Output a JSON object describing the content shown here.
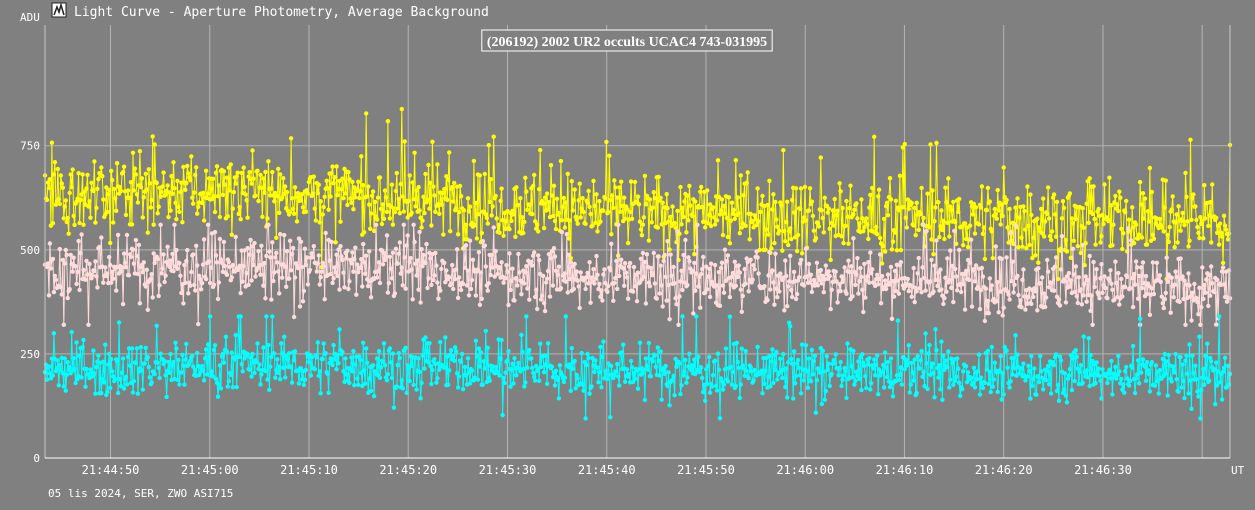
{
  "window": {
    "title": "Light Curve - Aperture Photometry, Average Background",
    "icon": "light-curve-app-icon"
  },
  "chart_data": {
    "type": "line",
    "title": "(206192) 2002 UR2 occults UCAC4 743-031995",
    "xlabel": "UT",
    "ylabel": "ADU",
    "y_ticks": [
      0,
      250,
      500,
      750
    ],
    "ylim": [
      0,
      1040
    ],
    "x_ticks": [
      "21:44:50",
      "21:45:00",
      "21:45:10",
      "21:45:20",
      "21:45:30",
      "21:45:40",
      "21:45:50",
      "21:46:00",
      "21:46:10",
      "21:46:20",
      "21:46:30"
    ],
    "xlim": [
      "21:44:43.4",
      "21:46:42.8"
    ],
    "grid": true,
    "background": "#808080",
    "series": [
      {
        "color": "#ffff00",
        "x_start": "21:44:43.4",
        "x_end": "21:46:42.8",
        "trend": [
          [
            0,
            630
          ],
          [
            0.15,
            645
          ],
          [
            0.3,
            620
          ],
          [
            0.45,
            600
          ],
          [
            0.6,
            585
          ],
          [
            0.75,
            575
          ],
          [
            0.9,
            570
          ],
          [
            1,
            565
          ]
        ],
        "spread": 100,
        "max": 838,
        "min": 430
      },
      {
        "color": "#ffdcdc",
        "x_start": "21:44:43.4",
        "x_end": "21:46:42.8",
        "trend": [
          [
            0,
            450
          ],
          [
            0.15,
            460
          ],
          [
            0.3,
            455
          ],
          [
            0.45,
            430
          ],
          [
            0.6,
            435
          ],
          [
            0.75,
            425
          ],
          [
            0.9,
            415
          ],
          [
            1,
            405
          ]
        ],
        "spread": 85,
        "max": 560,
        "min": 320
      },
      {
        "color": "#00ffff",
        "x_start": "21:44:43.4",
        "x_end": "21:46:42.8",
        "trend": [
          [
            0,
            210
          ],
          [
            0.15,
            225
          ],
          [
            0.3,
            220
          ],
          [
            0.45,
            210
          ],
          [
            0.6,
            208
          ],
          [
            0.75,
            205
          ],
          [
            0.9,
            200
          ],
          [
            1,
            200
          ]
        ],
        "spread": 70,
        "max": 340,
        "min": 95
      }
    ]
  },
  "footer": {
    "caption": "05 lis 2024, SER, ZWO ASI715"
  }
}
